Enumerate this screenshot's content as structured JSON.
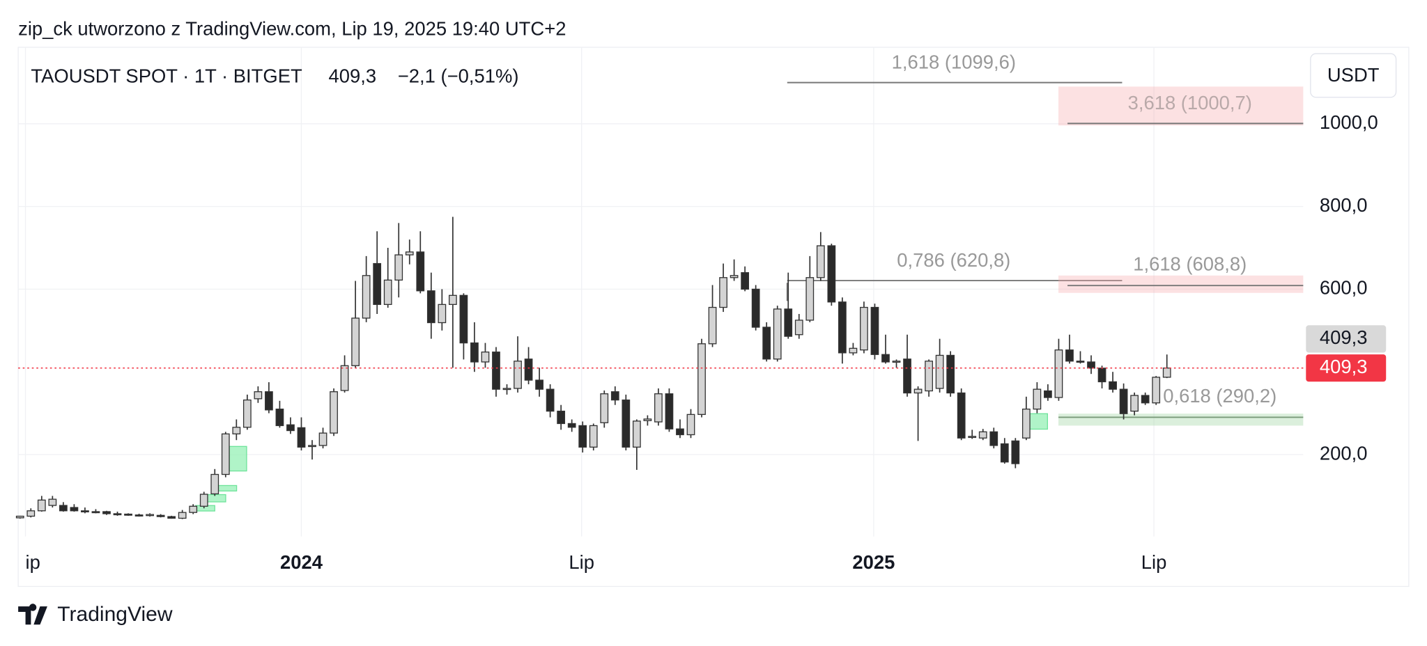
{
  "header": "zip_ck utworzono z TradingView.com, Lip 19, 2025 19:40 UTC+2",
  "footer": "TradingView",
  "chart_data": {
    "type": "candlestick",
    "title": "TAOUSDT SPOT · 1T · BITGET",
    "last": 409.3,
    "last_label": "409,3",
    "change_label": "−2,1 (−0,51%)",
    "currency": "USDT",
    "up_color": "#d4d4d4",
    "down_color": "#2a2a2a",
    "ylim": [
      2,
      1185
    ],
    "yticks": [
      {
        "value": 200,
        "label": "200,0"
      },
      {
        "value": 600,
        "label": "600,0"
      },
      {
        "value": 800,
        "label": "800,0"
      },
      {
        "value": 1000,
        "label": "1000,0"
      }
    ],
    "xlim": [
      -0.17,
      118.6
    ],
    "xticks": [
      {
        "value": 0.5,
        "label": "ip"
      },
      {
        "value": 26,
        "label": "2024"
      },
      {
        "value": 51.9,
        "label": "Lip"
      },
      {
        "value": 78.9,
        "label": "2025"
      },
      {
        "value": 104.8,
        "label": "Lip"
      }
    ],
    "ohlc": [
      [
        47,
        52,
        45,
        51
      ],
      [
        51,
        70,
        48,
        64
      ],
      [
        64,
        100,
        62,
        90
      ],
      [
        77,
        100,
        72,
        92
      ],
      [
        77,
        85,
        62,
        64
      ],
      [
        72,
        80,
        62,
        64
      ],
      [
        64,
        72,
        58,
        62
      ],
      [
        62,
        68,
        58,
        61
      ],
      [
        62,
        64,
        54,
        57
      ],
      [
        57,
        62,
        52,
        56
      ],
      [
        56,
        58,
        52,
        54
      ],
      [
        54,
        57,
        50,
        53
      ],
      [
        55,
        58,
        50,
        55
      ],
      [
        53,
        56,
        48,
        50
      ],
      [
        50,
        52,
        45,
        46
      ],
      [
        46,
        66,
        44,
        60
      ],
      [
        60,
        80,
        56,
        75
      ],
      [
        75,
        110,
        70,
        104
      ],
      [
        105,
        165,
        100,
        152
      ],
      [
        152,
        255,
        145,
        250
      ],
      [
        250,
        285,
        235,
        266
      ],
      [
        266,
        345,
        260,
        332
      ],
      [
        335,
        365,
        325,
        352
      ],
      [
        352,
        375,
        300,
        308
      ],
      [
        310,
        330,
        265,
        270
      ],
      [
        272,
        290,
        250,
        258
      ],
      [
        265,
        290,
        210,
        218
      ],
      [
        220,
        235,
        188,
        222
      ],
      [
        222,
        265,
        215,
        252
      ],
      [
        252,
        360,
        245,
        352
      ],
      [
        355,
        440,
        350,
        415
      ],
      [
        415,
        620,
        410,
        530
      ],
      [
        530,
        680,
        520,
        633
      ],
      [
        662,
        740,
        540,
        563
      ],
      [
        563,
        700,
        555,
        622
      ],
      [
        622,
        760,
        580,
        683
      ],
      [
        683,
        720,
        660,
        690
      ],
      [
        690,
        740,
        590,
        596
      ],
      [
        596,
        640,
        480,
        519
      ],
      [
        519,
        600,
        500,
        563
      ],
      [
        563,
        775,
        410,
        585
      ],
      [
        585,
        590,
        430,
        470
      ],
      [
        470,
        520,
        400,
        424
      ],
      [
        424,
        470,
        410,
        448
      ],
      [
        448,
        460,
        340,
        358
      ],
      [
        358,
        370,
        345,
        360
      ],
      [
        360,
        486,
        350,
        426
      ],
      [
        431,
        460,
        370,
        380
      ],
      [
        380,
        410,
        340,
        358
      ],
      [
        358,
        370,
        290,
        305
      ],
      [
        305,
        320,
        260,
        275
      ],
      [
        275,
        285,
        255,
        266
      ],
      [
        270,
        280,
        205,
        218
      ],
      [
        218,
        275,
        210,
        270
      ],
      [
        277,
        355,
        265,
        347
      ],
      [
        352,
        365,
        320,
        332
      ],
      [
        332,
        345,
        210,
        218
      ],
      [
        218,
        285,
        163,
        281
      ],
      [
        282,
        295,
        270,
        286
      ],
      [
        279,
        360,
        270,
        347
      ],
      [
        347,
        360,
        255,
        262
      ],
      [
        262,
        285,
        240,
        248
      ],
      [
        248,
        310,
        240,
        297
      ],
      [
        297,
        480,
        290,
        468
      ],
      [
        468,
        610,
        460,
        556
      ],
      [
        556,
        662,
        545,
        628
      ],
      [
        628,
        672,
        620,
        633
      ],
      [
        640,
        655,
        595,
        600
      ],
      [
        600,
        610,
        500,
        508
      ],
      [
        508,
        520,
        425,
        431
      ],
      [
        431,
        560,
        425,
        552
      ],
      [
        552,
        640,
        480,
        486
      ],
      [
        490,
        540,
        480,
        525
      ],
      [
        525,
        680,
        520,
        628
      ],
      [
        628,
        738,
        620,
        705
      ],
      [
        705,
        710,
        560,
        569
      ],
      [
        569,
        580,
        420,
        446
      ],
      [
        446,
        470,
        440,
        457
      ],
      [
        453,
        570,
        445,
        556
      ],
      [
        556,
        565,
        430,
        442
      ],
      [
        442,
        490,
        420,
        424
      ],
      [
        424,
        430,
        410,
        426
      ],
      [
        431,
        490,
        340,
        349
      ],
      [
        349,
        365,
        233,
        358
      ],
      [
        354,
        430,
        340,
        426
      ],
      [
        360,
        480,
        350,
        440
      ],
      [
        440,
        450,
        340,
        349
      ],
      [
        349,
        360,
        235,
        240
      ],
      [
        244,
        260,
        238,
        244
      ],
      [
        240,
        262,
        235,
        255
      ],
      [
        255,
        265,
        215,
        222
      ],
      [
        226,
        240,
        178,
        182
      ],
      [
        233,
        240,
        167,
        178
      ],
      [
        240,
        340,
        235,
        310
      ],
      [
        310,
        375,
        300,
        358
      ],
      [
        354,
        370,
        330,
        338
      ],
      [
        338,
        480,
        330,
        453
      ],
      [
        453,
        490,
        420,
        426
      ],
      [
        426,
        450,
        420,
        424
      ],
      [
        424,
        440,
        395,
        409
      ],
      [
        409,
        415,
        360,
        376
      ],
      [
        376,
        400,
        350,
        358
      ],
      [
        358,
        372,
        285,
        299
      ],
      [
        305,
        350,
        295,
        343
      ],
      [
        343,
        350,
        320,
        325
      ],
      [
        325,
        390,
        320,
        387
      ],
      [
        387,
        442,
        385,
        409.3
      ]
    ],
    "annotations": [
      {
        "label": "1,618 (1099,6)",
        "level": 1099.6
      },
      {
        "label": "3,618 (1000,7)",
        "level": 1000.7,
        "zone": [
          996,
          1090
        ]
      },
      {
        "label": "0,786 (620,8)",
        "level": 620.8
      },
      {
        "label": "1,618 (608,8)",
        "level": 608.8,
        "zone": [
          591,
          633
        ]
      },
      {
        "label": "0,618 (290,2)",
        "level": 290.2,
        "zone": [
          270,
          299
        ]
      }
    ]
  }
}
